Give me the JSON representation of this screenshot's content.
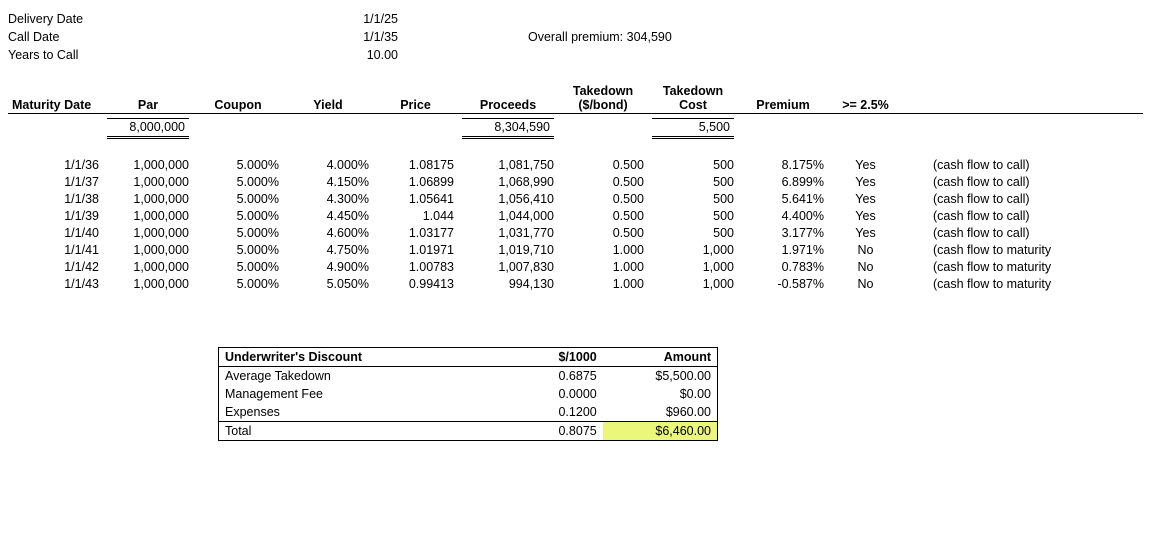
{
  "top": {
    "delivery_label": "Delivery Date",
    "delivery_value": "1/1/25",
    "call_label": "Call Date",
    "call_value": "1/1/35",
    "years_label": "Years to Call",
    "years_value": "10.00",
    "overall_label": "Overall premium: 304,590"
  },
  "columns": {
    "maturity": "Maturity Date",
    "par": "Par",
    "coupon": "Coupon",
    "yield": "Yield",
    "price": "Price",
    "proceeds": "Proceeds",
    "takedown_pb_l1": "Takedown",
    "takedown_pb_l2": "($/bond)",
    "takedown_cost_l1": "Takedown",
    "takedown_cost_l2": "Cost",
    "premium": "Premium",
    "gte": ">= 2.5%",
    "note": ""
  },
  "totals": {
    "par": "8,000,000",
    "proceeds": "8,304,590",
    "takedown_cost": "5,500"
  },
  "rows": [
    {
      "maturity": "1/1/36",
      "par": "1,000,000",
      "coupon": "5.000%",
      "yield": "4.000%",
      "price": "1.08175",
      "proceeds": "1,081,750",
      "td_pb": "0.500",
      "td_cost": "500",
      "premium": "8.175%",
      "gte": "Yes",
      "note": "(cash flow to call)"
    },
    {
      "maturity": "1/1/37",
      "par": "1,000,000",
      "coupon": "5.000%",
      "yield": "4.150%",
      "price": "1.06899",
      "proceeds": "1,068,990",
      "td_pb": "0.500",
      "td_cost": "500",
      "premium": "6.899%",
      "gte": "Yes",
      "note": "(cash flow to call)"
    },
    {
      "maturity": "1/1/38",
      "par": "1,000,000",
      "coupon": "5.000%",
      "yield": "4.300%",
      "price": "1.05641",
      "proceeds": "1,056,410",
      "td_pb": "0.500",
      "td_cost": "500",
      "premium": "5.641%",
      "gte": "Yes",
      "note": "(cash flow to call)"
    },
    {
      "maturity": "1/1/39",
      "par": "1,000,000",
      "coupon": "5.000%",
      "yield": "4.450%",
      "price": "1.044",
      "proceeds": "1,044,000",
      "td_pb": "0.500",
      "td_cost": "500",
      "premium": "4.400%",
      "gte": "Yes",
      "note": "(cash flow to call)"
    },
    {
      "maturity": "1/1/40",
      "par": "1,000,000",
      "coupon": "5.000%",
      "yield": "4.600%",
      "price": "1.03177",
      "proceeds": "1,031,770",
      "td_pb": "0.500",
      "td_cost": "500",
      "premium": "3.177%",
      "gte": "Yes",
      "note": "(cash flow to call)"
    },
    {
      "maturity": "1/1/41",
      "par": "1,000,000",
      "coupon": "5.000%",
      "yield": "4.750%",
      "price": "1.01971",
      "proceeds": "1,019,710",
      "td_pb": "1.000",
      "td_cost": "1,000",
      "premium": "1.971%",
      "gte": "No",
      "note": "(cash flow to maturity"
    },
    {
      "maturity": "1/1/42",
      "par": "1,000,000",
      "coupon": "5.000%",
      "yield": "4.900%",
      "price": "1.00783",
      "proceeds": "1,007,830",
      "td_pb": "1.000",
      "td_cost": "1,000",
      "premium": "0.783%",
      "gte": "No",
      "note": "(cash flow to maturity"
    },
    {
      "maturity": "1/1/43",
      "par": "1,000,000",
      "coupon": "5.000%",
      "yield": "5.050%",
      "price": "0.99413",
      "proceeds": "994,130",
      "td_pb": "1.000",
      "td_cost": "1,000",
      "premium": "-0.587%",
      "gte": "No",
      "note": "(cash flow to maturity"
    }
  ],
  "uw": {
    "title": "Underwriter's Discount",
    "col_per": "$/1000",
    "col_amt": "Amount",
    "r1_label": "Average Takedown",
    "r1_per": "0.6875",
    "r1_amt": "$5,500.00",
    "r2_label": "Management Fee",
    "r2_per": "0.0000",
    "r2_amt": "$0.00",
    "r3_label": "Expenses",
    "r3_per": "0.1200",
    "r3_amt": "$960.00",
    "tot_label": "Total",
    "tot_per": "0.8075",
    "tot_amt": "$6,460.00"
  },
  "widths": {
    "maturity": 95,
    "par": 90,
    "coupon": 90,
    "yield": 90,
    "price": 85,
    "proceeds": 100,
    "td_pb": 90,
    "td_cost": 90,
    "premium": 90,
    "gte": 75,
    "note": 160
  },
  "colors": {
    "highlight": "#eaf77a",
    "border": "#000000",
    "text": "#000000",
    "bg": "#ffffff"
  }
}
